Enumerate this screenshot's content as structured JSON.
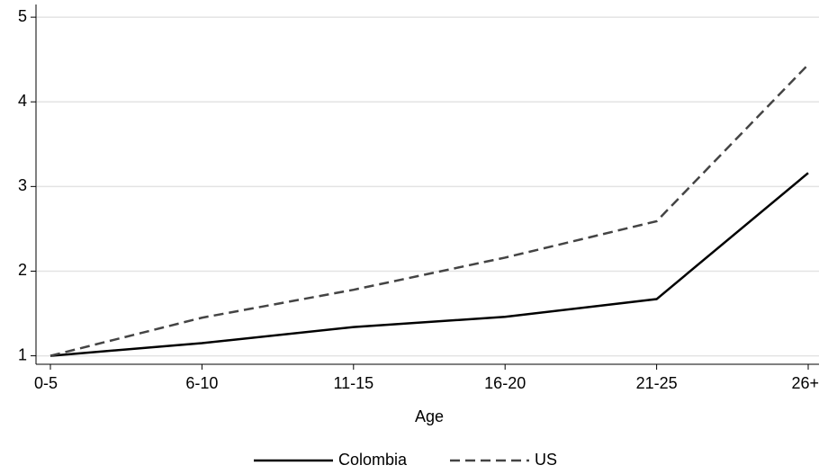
{
  "chart_data": {
    "type": "line",
    "x_label": "Age",
    "categories": [
      "0-5",
      "6-10",
      "11-15",
      "16-20",
      "21-25",
      "26+"
    ],
    "series": [
      {
        "name": "Colombia",
        "color": "#000000",
        "dash": "solid",
        "values": [
          1,
          1.15,
          1.34,
          1.46,
          1.67,
          3.16
        ]
      },
      {
        "name": "US",
        "color": "#444444",
        "dash": "dashed",
        "values": [
          1,
          1.45,
          1.78,
          2.16,
          2.59,
          4.44
        ]
      }
    ],
    "ylim": [
      0.9,
      5.15
    ],
    "yticks": [
      1,
      2,
      3,
      4,
      5
    ],
    "grid": true,
    "legend": "bottom"
  }
}
